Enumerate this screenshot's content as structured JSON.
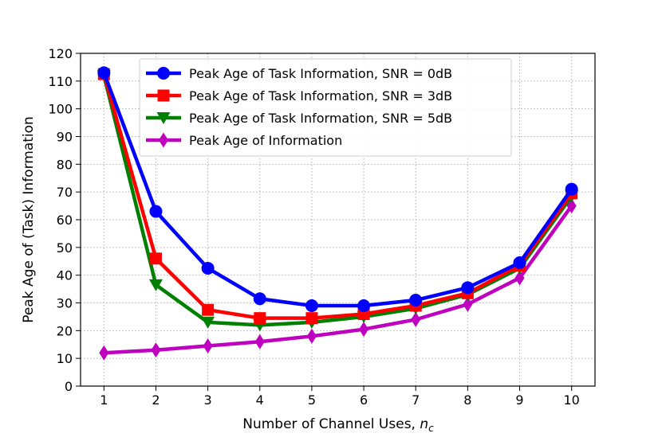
{
  "chart_data": {
    "type": "line",
    "xlabel": "Number of Channel Uses, ",
    "xlabel_subscript": "n",
    "xlabel_subscript_sub": "c",
    "ylabel": "Peak Age of (Task) Information",
    "xlim": [
      0.55,
      10.45
    ],
    "ylim": [
      0,
      120
    ],
    "xticks": [
      1,
      2,
      3,
      4,
      5,
      6,
      7,
      8,
      9,
      10
    ],
    "yticks": [
      0,
      10,
      20,
      30,
      40,
      50,
      60,
      70,
      80,
      90,
      100,
      110,
      120
    ],
    "grid": true,
    "legend_position": "top",
    "x": [
      1,
      2,
      3,
      4,
      5,
      6,
      7,
      8,
      9,
      10
    ],
    "series": [
      {
        "name": "Peak Age of Task Information, SNR = 0dB",
        "color": "#0000ff",
        "marker": "circle",
        "values": [
          113,
          63,
          42.5,
          31.5,
          29,
          29,
          31,
          35.5,
          44.5,
          71
        ]
      },
      {
        "name": "Peak Age of Task Information, SNR = 3dB",
        "color": "#ff0000",
        "marker": "square",
        "values": [
          112.5,
          46,
          27.5,
          24.5,
          24.5,
          26,
          29,
          33.5,
          43.5,
          69.5
        ]
      },
      {
        "name": "Peak Age of Task Information, SNR = 5dB",
        "color": "#008000",
        "marker": "triangle-down",
        "values": [
          112,
          36.5,
          23,
          22,
          23,
          25,
          28,
          33,
          42.5,
          68.5
        ]
      },
      {
        "name": "Peak Age of Information",
        "color": "#bf00bf",
        "marker": "thin-diamond",
        "values": [
          12,
          13,
          14.5,
          16,
          18,
          20.5,
          24,
          29.5,
          39,
          65
        ]
      }
    ]
  }
}
